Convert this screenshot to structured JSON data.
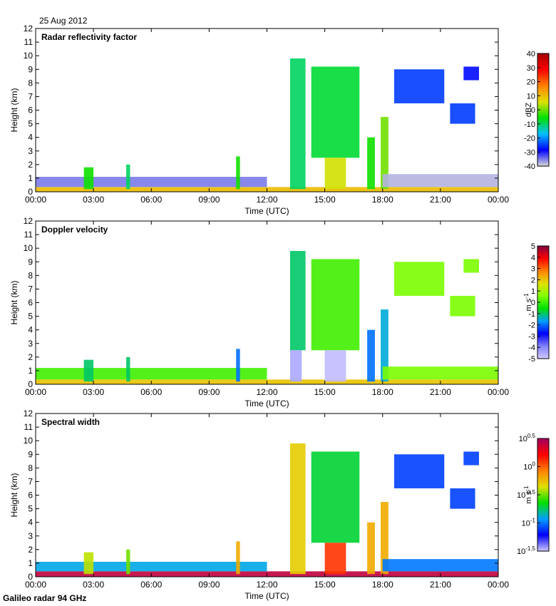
{
  "figure": {
    "date_label": "25 Aug 2012",
    "footer": "Galileo radar 94 GHz"
  },
  "chart_data": [
    {
      "type": "heatmap",
      "title": "Radar reflectivity factor",
      "xlabel": "Time (UTC)",
      "ylabel": "Height (km)",
      "x_ticks": [
        "00:00",
        "03:00",
        "06:00",
        "09:00",
        "12:00",
        "15:00",
        "18:00",
        "21:00",
        "00:00"
      ],
      "y_ticks": [
        0,
        1,
        2,
        3,
        4,
        5,
        6,
        7,
        8,
        9,
        10,
        11,
        12
      ],
      "xlim_hours": [
        0,
        24
      ],
      "ylim": [
        0,
        12
      ],
      "colorbar": {
        "label": "dBZ",
        "min": -40,
        "max": 40,
        "ticks": [
          "40",
          "30",
          "20",
          "10",
          "0",
          "-10",
          "-20",
          "-30",
          "-40"
        ],
        "colors": [
          "#d9d9d9",
          "#0000ff",
          "#00c0ff",
          "#00e000",
          "#e0e000",
          "#ff8000",
          "#ff0000",
          "#a00000"
        ]
      },
      "features": [
        {
          "start_h": 0.0,
          "end_h": 24.0,
          "base_km": 0.0,
          "top_km": 0.35,
          "value": 10
        },
        {
          "start_h": 0.0,
          "end_h": 12.0,
          "base_km": 0.35,
          "top_km": 1.1,
          "value": -35
        },
        {
          "start_h": 2.5,
          "end_h": 3.0,
          "base_km": 0.2,
          "top_km": 1.8,
          "value": -5
        },
        {
          "start_h": 4.7,
          "end_h": 4.9,
          "base_km": 0.2,
          "top_km": 2.0,
          "value": -10
        },
        {
          "start_h": 10.4,
          "end_h": 10.6,
          "base_km": 0.2,
          "top_km": 2.6,
          "value": -5
        },
        {
          "start_h": 13.2,
          "end_h": 14.0,
          "base_km": 0.2,
          "top_km": 9.8,
          "value": -10
        },
        {
          "start_h": 14.3,
          "end_h": 16.8,
          "base_km": 2.5,
          "top_km": 9.2,
          "value": -8
        },
        {
          "start_h": 15.0,
          "end_h": 16.1,
          "base_km": 0.2,
          "top_km": 2.5,
          "value": 5
        },
        {
          "start_h": 17.2,
          "end_h": 17.6,
          "base_km": 0.2,
          "top_km": 4.0,
          "value": -5
        },
        {
          "start_h": 17.9,
          "end_h": 18.3,
          "base_km": 0.2,
          "top_km": 5.5,
          "value": 0
        },
        {
          "start_h": 18.6,
          "end_h": 21.2,
          "base_km": 6.5,
          "top_km": 9.0,
          "value": -25
        },
        {
          "start_h": 21.5,
          "end_h": 22.8,
          "base_km": 5.0,
          "top_km": 6.5,
          "value": -25
        },
        {
          "start_h": 22.2,
          "end_h": 23.0,
          "base_km": 8.2,
          "top_km": 9.2,
          "value": -28
        },
        {
          "start_h": 18.0,
          "end_h": 24.0,
          "base_km": 0.35,
          "top_km": 1.3,
          "value": -38
        }
      ]
    },
    {
      "type": "heatmap",
      "title": "Doppler velocity",
      "xlabel": "Time (UTC)",
      "ylabel": "Height (km)",
      "x_ticks": [
        "00:00",
        "03:00",
        "06:00",
        "09:00",
        "12:00",
        "15:00",
        "18:00",
        "21:00",
        "00:00"
      ],
      "y_ticks": [
        0,
        1,
        2,
        3,
        4,
        5,
        6,
        7,
        8,
        9,
        10,
        11,
        12
      ],
      "xlim_hours": [
        0,
        24
      ],
      "ylim": [
        0,
        12
      ],
      "colorbar": {
        "label": "m s-1",
        "min": -5,
        "max": 5,
        "ticks": [
          "5",
          "4",
          "3",
          "2",
          "1",
          "0",
          "-1",
          "-2",
          "-3",
          "-4",
          "-5"
        ],
        "colors": [
          "#d0c8ff",
          "#8080ff",
          "#0000ff",
          "#00a0ff",
          "#00e000",
          "#80ff00",
          "#e0e000",
          "#ff8000",
          "#ff0000",
          "#800040"
        ]
      },
      "features": [
        {
          "start_h": 0.0,
          "end_h": 24.0,
          "base_km": 0.0,
          "top_km": 0.35,
          "value": 2
        },
        {
          "start_h": 0.0,
          "end_h": 12.0,
          "base_km": 0.35,
          "top_km": 1.2,
          "value": 0
        },
        {
          "start_h": 2.5,
          "end_h": 3.0,
          "base_km": 0.2,
          "top_km": 1.8,
          "value": -1
        },
        {
          "start_h": 4.7,
          "end_h": 4.9,
          "base_km": 0.2,
          "top_km": 2.0,
          "value": -1
        },
        {
          "start_h": 10.4,
          "end_h": 10.6,
          "base_km": 0.2,
          "top_km": 2.6,
          "value": -2
        },
        {
          "start_h": 13.2,
          "end_h": 14.0,
          "base_km": 2.5,
          "top_km": 9.8,
          "value": -1
        },
        {
          "start_h": 13.2,
          "end_h": 13.8,
          "base_km": 0.2,
          "top_km": 2.5,
          "value": -4.5
        },
        {
          "start_h": 14.3,
          "end_h": 16.8,
          "base_km": 2.5,
          "top_km": 9.2,
          "value": 0
        },
        {
          "start_h": 15.0,
          "end_h": 16.1,
          "base_km": 0.2,
          "top_km": 2.5,
          "value": -4.8
        },
        {
          "start_h": 17.2,
          "end_h": 17.6,
          "base_km": 0.2,
          "top_km": 4.0,
          "value": -2
        },
        {
          "start_h": 17.9,
          "end_h": 18.3,
          "base_km": 0.2,
          "top_km": 5.5,
          "value": -1.5
        },
        {
          "start_h": 18.6,
          "end_h": 21.2,
          "base_km": 6.5,
          "top_km": 9.0,
          "value": 0.5
        },
        {
          "start_h": 21.5,
          "end_h": 22.8,
          "base_km": 5.0,
          "top_km": 6.5,
          "value": 0.5
        },
        {
          "start_h": 22.2,
          "end_h": 23.0,
          "base_km": 8.2,
          "top_km": 9.2,
          "value": 0.5
        },
        {
          "start_h": 18.0,
          "end_h": 24.0,
          "base_km": 0.35,
          "top_km": 1.3,
          "value": 0.5
        }
      ]
    },
    {
      "type": "heatmap",
      "title": "Spectral width",
      "xlabel": "Time (UTC)",
      "ylabel": "Height (km)",
      "x_ticks": [
        "00:00",
        "03:00",
        "06:00",
        "09:00",
        "12:00",
        "15:00",
        "18:00",
        "21:00",
        "00:00"
      ],
      "y_ticks": [
        0,
        1,
        2,
        3,
        4,
        5,
        6,
        7,
        8,
        9,
        10,
        11,
        12
      ],
      "xlim_hours": [
        0,
        24
      ],
      "ylim": [
        0,
        12
      ],
      "colorbar": {
        "label": "m s-1",
        "min": -1.5,
        "max": 0.5,
        "ticks": [
          "10^0.5",
          "10^0",
          "10^-0.5",
          "10^-1",
          "10^-1.5"
        ],
        "colors": [
          "#d0c8ff",
          "#0000ff",
          "#00a0ff",
          "#00e000",
          "#e0e000",
          "#ff8000",
          "#ff0000",
          "#a00060"
        ]
      },
      "features": [
        {
          "start_h": 0.0,
          "end_h": 24.0,
          "base_km": 0.0,
          "top_km": 0.4,
          "value": 0.4
        },
        {
          "start_h": 0.0,
          "end_h": 12.0,
          "base_km": 0.4,
          "top_km": 1.1,
          "value": -0.9
        },
        {
          "start_h": 2.5,
          "end_h": 3.0,
          "base_km": 0.2,
          "top_km": 1.8,
          "value": -0.4
        },
        {
          "start_h": 4.7,
          "end_h": 4.9,
          "base_km": 0.2,
          "top_km": 2.0,
          "value": -0.5
        },
        {
          "start_h": 10.4,
          "end_h": 10.6,
          "base_km": 0.2,
          "top_km": 2.6,
          "value": -0.2
        },
        {
          "start_h": 13.2,
          "end_h": 14.0,
          "base_km": 0.2,
          "top_km": 9.8,
          "value": -0.3
        },
        {
          "start_h": 14.3,
          "end_h": 16.8,
          "base_km": 2.5,
          "top_km": 9.2,
          "value": -0.7
        },
        {
          "start_h": 15.0,
          "end_h": 16.1,
          "base_km": 0.2,
          "top_km": 2.5,
          "value": 0.1
        },
        {
          "start_h": 17.2,
          "end_h": 17.6,
          "base_km": 0.2,
          "top_km": 4.0,
          "value": -0.2
        },
        {
          "start_h": 17.9,
          "end_h": 18.3,
          "base_km": 0.2,
          "top_km": 5.5,
          "value": -0.2
        },
        {
          "start_h": 18.6,
          "end_h": 21.2,
          "base_km": 6.5,
          "top_km": 9.0,
          "value": -1.1
        },
        {
          "start_h": 21.5,
          "end_h": 22.8,
          "base_km": 5.0,
          "top_km": 6.5,
          "value": -1.1
        },
        {
          "start_h": 22.2,
          "end_h": 23.0,
          "base_km": 8.2,
          "top_km": 9.2,
          "value": -1.1
        },
        {
          "start_h": 18.0,
          "end_h": 24.0,
          "base_km": 0.4,
          "top_km": 1.3,
          "value": -1.0
        }
      ]
    }
  ]
}
